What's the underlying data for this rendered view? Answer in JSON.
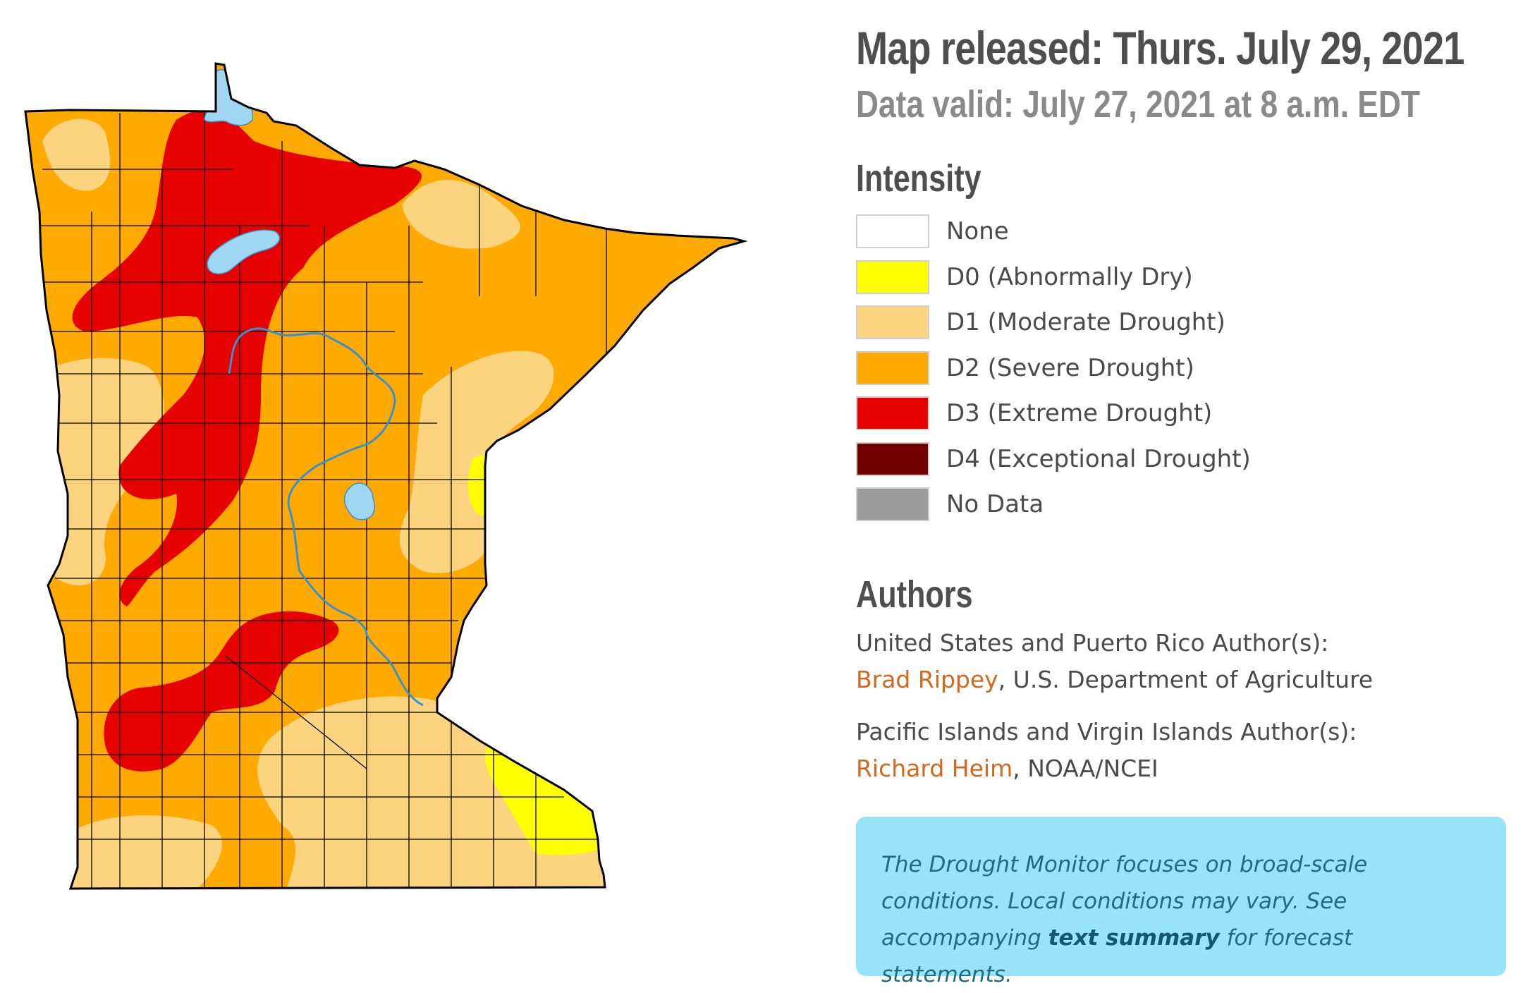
{
  "header": {
    "released": "Map released: Thurs. July 29, 2021",
    "valid": "Data valid: July 27, 2021 at 8 a.m. EDT"
  },
  "legend": {
    "title": "Intensity",
    "items": [
      {
        "code": "None",
        "desc": "",
        "color": "#ffffff"
      },
      {
        "code": "D0",
        "desc": "(Abnormally Dry)",
        "color": "#ffff00"
      },
      {
        "code": "D1",
        "desc": "(Moderate Drought)",
        "color": "#fcd37f"
      },
      {
        "code": "D2",
        "desc": "(Severe Drought)",
        "color": "#ffaa00"
      },
      {
        "code": "D3",
        "desc": "(Extreme Drought)",
        "color": "#e60000"
      },
      {
        "code": "D4",
        "desc": "(Exceptional Drought)",
        "color": "#730000"
      },
      {
        "code": "No Data",
        "desc": "",
        "color": "#9b9b9b"
      }
    ]
  },
  "authors": {
    "title": "Authors",
    "us_label": "United States and Puerto Rico Author(s):",
    "us_name": "Brad Rippey",
    "us_org": ", U.S. Department of Agriculture",
    "pi_label": "Pacific Islands and Virgin Islands Author(s):",
    "pi_name": "Richard Heim",
    "pi_org": ", NOAA/NCEI"
  },
  "note": {
    "text_1": "The Drought Monitor focuses on broad-scale conditions. Local conditions may vary. See accompanying ",
    "link": "text summary",
    "text_2": " for forecast statements."
  },
  "map": {
    "colors": {
      "d0": "#ffff00",
      "d1": "#fcd37f",
      "d2": "#ffaa00",
      "d3": "#e60000",
      "water": "#9fd7f2",
      "river": "#3a8fd0",
      "border": "#000000"
    }
  }
}
